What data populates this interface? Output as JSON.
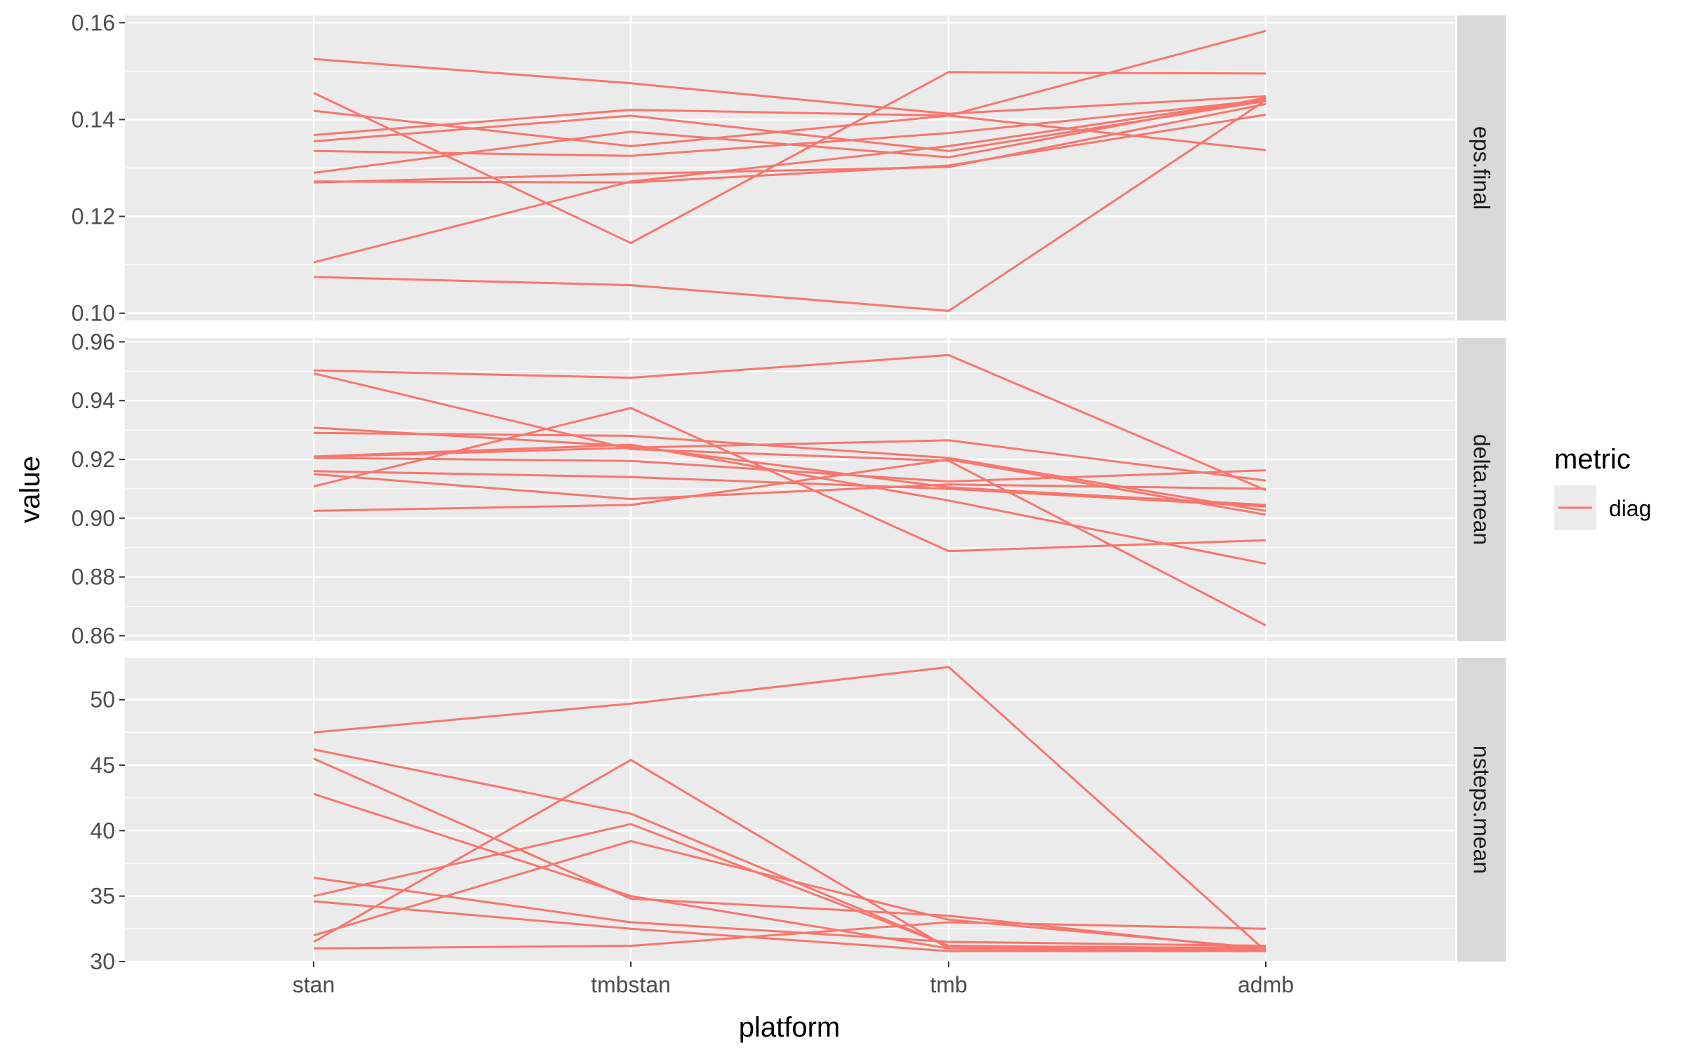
{
  "chart_data": {
    "type": "line",
    "xlabel": "platform",
    "ylabel": "value",
    "categories": [
      "stan",
      "tmbstan",
      "tmb",
      "admb"
    ],
    "legend": {
      "title": "metric",
      "position": "right",
      "entries": [
        {
          "name": "diag",
          "color": "#F8766D"
        }
      ]
    },
    "grid": true,
    "panels": [
      {
        "strip": "eps.final",
        "ylim": [
          0.0985,
          0.1615
        ],
        "ticks": [
          0.1,
          0.12,
          0.14,
          0.16
        ],
        "tick_labels": [
          "0.10",
          "0.12",
          "0.14",
          "0.16"
        ],
        "minor_ticks": [
          0.11,
          0.13,
          0.15
        ],
        "series": [
          {
            "values": [
              0.1525,
              0.1475,
              0.1412,
              0.1448
            ]
          },
          {
            "values": [
              0.1455,
              0.1145,
              0.1498,
              0.1495
            ]
          },
          {
            "values": [
              0.1418,
              0.1345,
              0.1408,
              0.1583
            ]
          },
          {
            "values": [
              0.1368,
              0.142,
              0.1408,
              0.1337
            ]
          },
          {
            "values": [
              0.1355,
              0.1408,
              0.1335,
              0.1438
            ]
          },
          {
            "values": [
              0.1335,
              0.1325,
              0.1372,
              0.144
            ]
          },
          {
            "values": [
              0.129,
              0.1375,
              0.1322,
              0.1445
            ]
          },
          {
            "values": [
              0.127,
              0.1288,
              0.1302,
              0.1432
            ]
          },
          {
            "values": [
              0.1105,
              0.1272,
              0.1345,
              0.1442
            ]
          },
          {
            "values": [
              0.1272,
              0.127,
              0.1305,
              0.141
            ]
          },
          {
            "values": [
              0.1075,
              0.1058,
              0.1005,
              0.144
            ]
          }
        ]
      },
      {
        "strip": "delta.mean",
        "ylim": [
          0.8582,
          0.9613
        ],
        "ticks": [
          0.86,
          0.88,
          0.9,
          0.92,
          0.94,
          0.96
        ],
        "tick_labels": [
          "0.86",
          "0.88",
          "0.90",
          "0.92",
          "0.94",
          "0.96"
        ],
        "minor_ticks": [
          0.87,
          0.89,
          0.91,
          0.93,
          0.95
        ],
        "series": [
          {
            "values": [
              0.9503,
              0.9478,
              0.9555,
              0.9095
            ]
          },
          {
            "values": [
              0.9493,
              0.9235,
              0.9195,
              0.8635
            ]
          },
          {
            "values": [
              0.9308,
              0.9245,
              0.9105,
              0.9045
            ]
          },
          {
            "values": [
              0.929,
              0.928,
              0.9205,
              0.9025
            ]
          },
          {
            "values": [
              0.9208,
              0.924,
              0.9265,
              0.9128
            ]
          },
          {
            "values": [
              0.9205,
              0.9195,
              0.9125,
              0.9163
            ]
          },
          {
            "values": [
              0.916,
              0.914,
              0.91,
              0.904
            ]
          },
          {
            "values": [
              0.915,
              0.9065,
              0.9115,
              0.91
            ]
          },
          {
            "values": [
              0.9108,
              0.9375,
              0.8888,
              0.8925
            ]
          },
          {
            "values": [
              0.9025,
              0.9045,
              0.92,
              0.9012
            ]
          },
          {
            "values": [
              0.921,
              0.925,
              0.906,
              0.8845
            ]
          }
        ]
      },
      {
        "strip": "nsteps.mean",
        "ylim": [
          30,
          53.2
        ],
        "ticks": [
          30,
          35,
          40,
          45,
          50
        ],
        "tick_labels": [
          "30",
          "35",
          "40",
          "45",
          "50"
        ],
        "minor_ticks": [
          32.5,
          37.5,
          42.5,
          47.5
        ],
        "series": [
          {
            "values": [
              47.5,
              49.7,
              52.5,
              30.8
            ]
          },
          {
            "values": [
              46.2,
              41.3,
              31.2,
              31.0
            ]
          },
          {
            "values": [
              45.5,
              34.8,
              33.5,
              30.9
            ]
          },
          {
            "values": [
              42.8,
              35.0,
              31.0,
              30.8
            ]
          },
          {
            "values": [
              36.4,
              33.0,
              31.5,
              31.2
            ]
          },
          {
            "values": [
              35.0,
              40.5,
              31.2,
              30.9
            ]
          },
          {
            "values": [
              34.6,
              32.5,
              30.8,
              30.8
            ]
          },
          {
            "values": [
              32.0,
              39.2,
              33.2,
              31.0
            ]
          },
          {
            "values": [
              31.5,
              45.4,
              31.0,
              31.1
            ]
          },
          {
            "values": [
              31.0,
              31.2,
              33.0,
              32.5
            ]
          }
        ]
      }
    ]
  }
}
